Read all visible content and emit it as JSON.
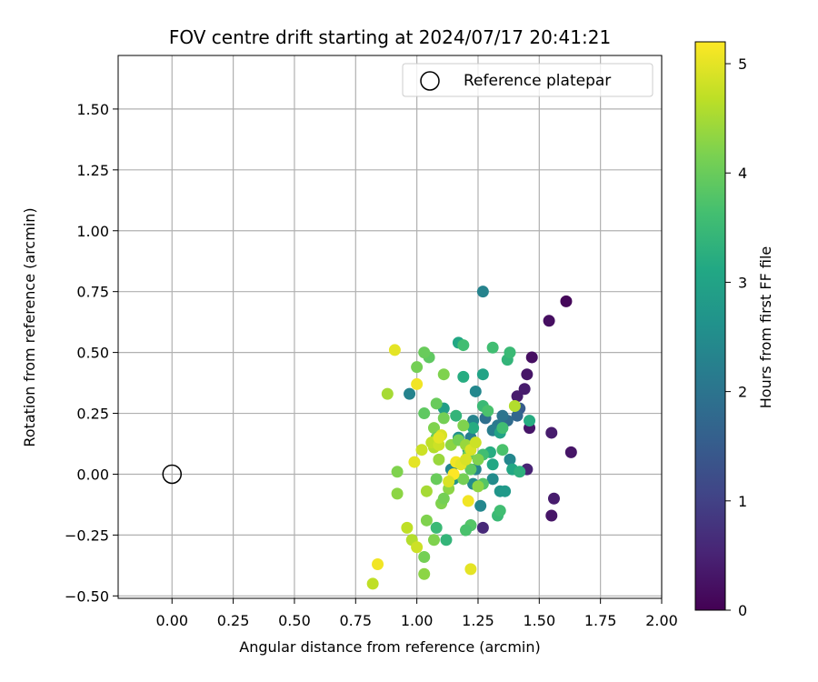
{
  "chart_data": {
    "type": "scatter",
    "title": "FOV centre drift starting at 2024/07/17 20:41:21",
    "xlabel": "Angular distance from reference (arcmin)",
    "ylabel": "Rotation from reference (arcmin)",
    "xlim": [
      -0.22,
      2.0
    ],
    "ylim": [
      -0.51,
      1.72
    ],
    "xticks": [
      0.0,
      0.25,
      0.5,
      0.75,
      1.0,
      1.25,
      1.5,
      1.75,
      2.0
    ],
    "xtick_labels": [
      "0.00",
      "0.25",
      "0.50",
      "0.75",
      "1.00",
      "1.25",
      "1.50",
      "1.75",
      "2.00"
    ],
    "yticks": [
      -0.5,
      -0.25,
      0.0,
      0.25,
      0.5,
      0.75,
      1.0,
      1.25,
      1.5
    ],
    "ytick_labels": [
      "−0.50",
      "−0.25",
      "0.00",
      "0.25",
      "0.50",
      "0.75",
      "1.00",
      "1.25",
      "1.50"
    ],
    "grid": true,
    "legend": {
      "placement": "upper right",
      "entries": [
        "Reference platepar"
      ]
    },
    "reference_point": {
      "x": 0.0,
      "y": 0.0
    },
    "colorbar": {
      "label": "Hours from first FF file",
      "range": [
        0,
        5.2
      ],
      "ticks": [
        0,
        1,
        2,
        3,
        4,
        5
      ],
      "tick_labels": [
        "0",
        "1",
        "2",
        "3",
        "4",
        "5"
      ],
      "colormap": "viridis"
    },
    "points": [
      [
        1.61,
        0.71,
        0.1
      ],
      [
        1.54,
        0.63,
        0.2
      ],
      [
        1.47,
        0.48,
        0.2
      ],
      [
        1.45,
        0.41,
        0.3
      ],
      [
        1.44,
        0.35,
        0.4
      ],
      [
        1.41,
        0.32,
        0.4
      ],
      [
        1.46,
        0.19,
        0.3
      ],
      [
        1.55,
        0.17,
        0.4
      ],
      [
        1.63,
        0.09,
        0.3
      ],
      [
        1.45,
        0.02,
        0.5
      ],
      [
        1.56,
        -0.1,
        0.4
      ],
      [
        1.55,
        -0.17,
        0.3
      ],
      [
        1.27,
        -0.22,
        0.6
      ],
      [
        1.42,
        0.27,
        1.5
      ],
      [
        1.41,
        0.24,
        1.7
      ],
      [
        1.37,
        0.22,
        1.8
      ],
      [
        1.35,
        0.24,
        2.0
      ],
      [
        1.33,
        0.2,
        2.1
      ],
      [
        1.31,
        0.18,
        2.2
      ],
      [
        1.28,
        0.23,
        1.9
      ],
      [
        1.27,
        0.75,
        2.3
      ],
      [
        1.24,
        0.34,
        2.4
      ],
      [
        1.23,
        0.22,
        2.3
      ],
      [
        1.22,
        0.15,
        2.2
      ],
      [
        1.21,
        0.1,
        2.5
      ],
      [
        1.24,
        0.02,
        2.3
      ],
      [
        1.23,
        -0.04,
        2.5
      ],
      [
        1.26,
        -0.13,
        2.4
      ],
      [
        1.22,
        -0.21,
        2.6
      ],
      [
        1.31,
        -0.02,
        2.5
      ],
      [
        1.34,
        -0.07,
        2.7
      ],
      [
        1.36,
        -0.07,
        2.8
      ],
      [
        1.38,
        0.06,
        2.4
      ],
      [
        1.17,
        0.15,
        2.6
      ],
      [
        1.14,
        0.02,
        2.4
      ],
      [
        1.15,
        -0.02,
        2.7
      ],
      [
        0.97,
        0.33,
        2.3
      ],
      [
        1.11,
        0.27,
        2.9
      ],
      [
        1.17,
        0.54,
        3.1
      ],
      [
        1.27,
        0.41,
        3.0
      ],
      [
        1.19,
        0.4,
        3.2
      ],
      [
        1.34,
        0.17,
        3.0
      ],
      [
        1.3,
        0.09,
        3.2
      ],
      [
        1.31,
        0.04,
        3.1
      ],
      [
        1.39,
        0.02,
        3.1
      ],
      [
        1.42,
        0.01,
        3.3
      ],
      [
        1.46,
        0.22,
        3.2
      ],
      [
        1.37,
        0.47,
        3.4
      ],
      [
        1.38,
        0.5,
        3.5
      ],
      [
        1.31,
        0.52,
        3.6
      ],
      [
        1.19,
        0.53,
        3.6
      ],
      [
        1.16,
        0.24,
        3.4
      ],
      [
        1.23,
        0.19,
        3.2
      ],
      [
        1.27,
        0.28,
        3.5
      ],
      [
        1.29,
        0.26,
        3.7
      ],
      [
        1.35,
        0.19,
        3.6
      ],
      [
        1.35,
        0.1,
        3.7
      ],
      [
        1.27,
        0.08,
        3.6
      ],
      [
        1.27,
        -0.04,
        3.8
      ],
      [
        1.33,
        -0.17,
        3.5
      ],
      [
        1.34,
        -0.15,
        3.6
      ],
      [
        1.22,
        -0.21,
        3.8
      ],
      [
        1.2,
        -0.23,
        3.7
      ],
      [
        1.12,
        -0.27,
        3.4
      ],
      [
        1.08,
        -0.22,
        3.5
      ],
      [
        1.05,
        0.48,
        3.9
      ],
      [
        1.03,
        0.5,
        4.0
      ],
      [
        1.11,
        0.41,
        4.2
      ],
      [
        1.0,
        0.44,
        4.1
      ],
      [
        1.08,
        0.29,
        4.0
      ],
      [
        1.11,
        0.23,
        4.1
      ],
      [
        1.03,
        0.25,
        3.9
      ],
      [
        1.07,
        0.19,
        4.2
      ],
      [
        1.08,
        0.15,
        4.0
      ],
      [
        1.14,
        0.12,
        4.3
      ],
      [
        1.17,
        0.14,
        4.1
      ],
      [
        1.19,
        0.2,
        4.2
      ],
      [
        1.2,
        0.12,
        4.4
      ],
      [
        1.21,
        0.08,
        4.0
      ],
      [
        1.25,
        0.06,
        4.2
      ],
      [
        1.22,
        0.02,
        3.9
      ],
      [
        1.19,
        -0.02,
        4.1
      ],
      [
        1.13,
        -0.06,
        4.3
      ],
      [
        1.1,
        -0.12,
        4.2
      ],
      [
        1.08,
        -0.02,
        4.0
      ],
      [
        1.09,
        0.06,
        4.4
      ],
      [
        1.11,
        -0.1,
        4.1
      ],
      [
        1.07,
        -0.27,
        4.2
      ],
      [
        1.03,
        -0.41,
        4.3
      ],
      [
        1.03,
        -0.34,
        4.1
      ],
      [
        1.04,
        -0.19,
        4.2
      ],
      [
        0.92,
        0.01,
        4.2
      ],
      [
        0.92,
        -0.08,
        4.3
      ],
      [
        0.88,
        0.33,
        4.5
      ],
      [
        1.25,
        -0.05,
        4.3
      ],
      [
        1.4,
        0.28,
        4.6
      ],
      [
        0.96,
        -0.22,
        4.7
      ],
      [
        0.98,
        -0.27,
        4.6
      ],
      [
        1.0,
        -0.3,
        4.8
      ],
      [
        0.82,
        -0.45,
        4.7
      ],
      [
        1.04,
        -0.07,
        4.5
      ],
      [
        1.07,
        0.11,
        4.6
      ],
      [
        1.06,
        0.13,
        4.7
      ],
      [
        1.09,
        0.12,
        4.8
      ],
      [
        1.1,
        0.16,
        4.9
      ],
      [
        1.09,
        0.15,
        5.0
      ],
      [
        1.02,
        0.1,
        4.8
      ],
      [
        0.99,
        0.05,
        5.0
      ],
      [
        1.16,
        0.05,
        5.1
      ],
      [
        1.18,
        0.04,
        5.0
      ],
      [
        1.2,
        0.06,
        4.9
      ],
      [
        1.22,
        0.1,
        4.9
      ],
      [
        1.24,
        0.13,
        4.8
      ],
      [
        1.21,
        -0.11,
        5.1
      ],
      [
        1.22,
        -0.39,
        5.0
      ],
      [
        0.84,
        -0.37,
        5.1
      ],
      [
        0.91,
        0.51,
        5.0
      ],
      [
        1.0,
        0.37,
        5.1
      ],
      [
        1.15,
        0.0,
        5.2
      ],
      [
        1.13,
        -0.03,
        4.9
      ]
    ]
  }
}
